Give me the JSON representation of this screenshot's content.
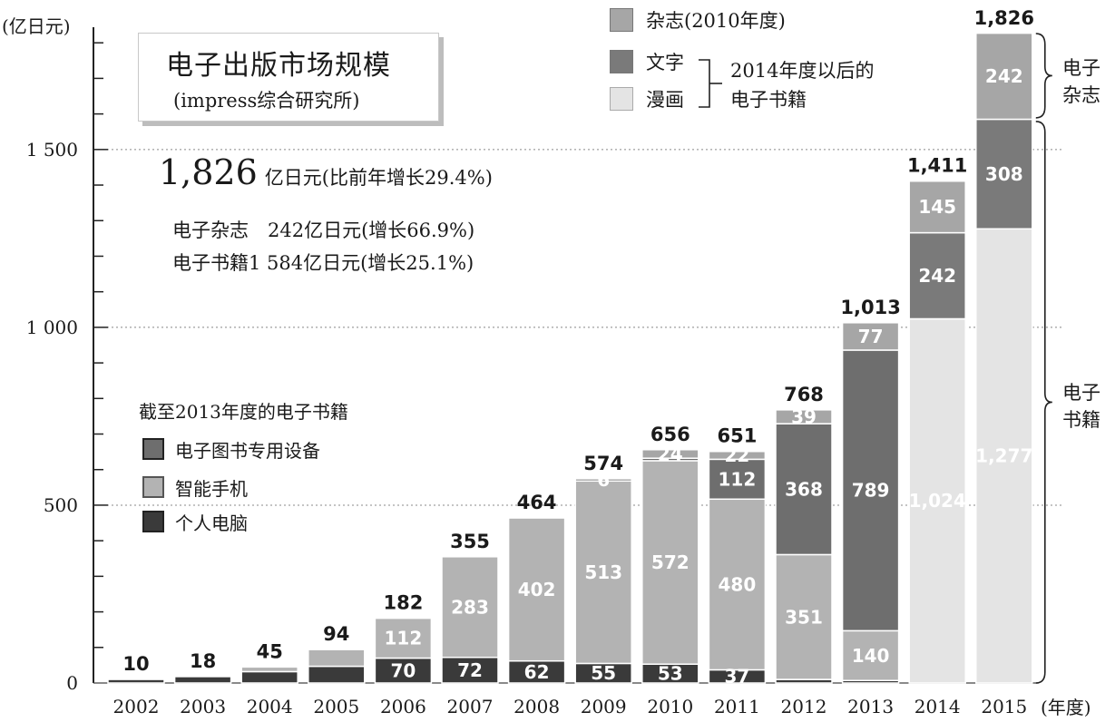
{
  "chart_data": {
    "type": "bar",
    "stacked": true,
    "categories": [
      "2002",
      "2003",
      "2004",
      "2005",
      "2006",
      "2007",
      "2008",
      "2009",
      "2010",
      "2011",
      "2012",
      "2013",
      "2014",
      "2015"
    ],
    "xlabel_unit": "(年度)",
    "ylabel": "(亿日元)",
    "ylim": [
      0,
      1826
    ],
    "yticks": [
      0,
      500,
      1000,
      1500
    ],
    "ytick_labels": [
      "0",
      "500",
      "1 000",
      "1 500"
    ],
    "grid": "dashed horizontal at 500, 1000, 1500",
    "totals": [
      "10",
      "18",
      "45",
      "94",
      "182",
      "355",
      "464",
      "574",
      "656",
      "651",
      "768",
      "1,013",
      "1,411",
      "1,826"
    ],
    "total_values": [
      10,
      18,
      45,
      94,
      182,
      355,
      464,
      574,
      656,
      651,
      768,
      1013,
      1411,
      1826
    ],
    "series": [
      {
        "name": "个人电脑",
        "color": "#3a3a3a",
        "values": [
          10,
          18,
          32,
          47,
          70,
          72,
          62,
          55,
          53,
          37,
          10,
          7,
          0,
          0
        ],
        "labels": [
          "",
          "",
          "",
          "",
          "70",
          "72",
          "62",
          "55",
          "53",
          "37",
          "",
          "",
          "",
          ""
        ]
      },
      {
        "name": "智能手机",
        "color": "#b3b3b3",
        "values": [
          0,
          0,
          13,
          47,
          112,
          283,
          402,
          513,
          572,
          480,
          351,
          140,
          0,
          0
        ],
        "labels": [
          "",
          "",
          "",
          "",
          "112",
          "283",
          "402",
          "513",
          "572",
          "480",
          "351",
          "140",
          "",
          ""
        ]
      },
      {
        "name": "电子图书专用设备",
        "color": "#6e6e6e",
        "values": [
          0,
          0,
          0,
          0,
          0,
          0,
          0,
          6,
          7,
          112,
          368,
          789,
          0,
          0
        ],
        "labels": [
          "",
          "",
          "",
          "",
          "",
          "",
          "",
          "6",
          "",
          "112",
          "368",
          "789",
          "",
          ""
        ]
      },
      {
        "name": "漫画",
        "color": "#e4e4e4",
        "values": [
          0,
          0,
          0,
          0,
          0,
          0,
          0,
          0,
          0,
          0,
          0,
          0,
          1024,
          1277
        ],
        "labels": [
          "",
          "",
          "",
          "",
          "",
          "",
          "",
          "",
          "",
          "",
          "",
          "",
          "1,024",
          "1,277"
        ]
      },
      {
        "name": "文字",
        "color": "#7a7a7a",
        "values": [
          0,
          0,
          0,
          0,
          0,
          0,
          0,
          0,
          0,
          0,
          0,
          0,
          242,
          308
        ],
        "labels": [
          "",
          "",
          "",
          "",
          "",
          "",
          "",
          "",
          "",
          "",
          "",
          "",
          "242",
          "308"
        ]
      },
      {
        "name": "杂志",
        "color": "#a6a6a6",
        "values": [
          0,
          0,
          0,
          0,
          0,
          0,
          0,
          0,
          24,
          22,
          39,
          77,
          145,
          242
        ],
        "labels": [
          "",
          "",
          "",
          "",
          "",
          "",
          "",
          "",
          "24",
          "22",
          "39",
          "77",
          "145",
          "242"
        ]
      }
    ]
  },
  "title": {
    "main": "电子出版市场规模",
    "sub": "(impress综合研究所)"
  },
  "summary": {
    "total_value": "1,826",
    "total_text": "亿日元(比前年增长29.4%)",
    "magazine_line": "电子杂志　242亿日元(增长66.9%)",
    "ebook_line": "电子书籍1 584亿日元(增长25.1%)"
  },
  "legend_bottom": {
    "title": "截至2013年度的电子书籍",
    "items": [
      {
        "label": "电子图书专用设备",
        "color": "#6e6e6e"
      },
      {
        "label": "智能手机",
        "color": "#b3b3b3"
      },
      {
        "label": "个人电脑",
        "color": "#3a3a3a"
      }
    ]
  },
  "legend_top": {
    "magazine": "杂志(2010年度)",
    "text": "文字",
    "manga": "漫画",
    "brace_line1": "2014年度以后的",
    "brace_line2": "电子书籍"
  },
  "side_labels": {
    "magazine": "电子杂志",
    "ebook": "电子书籍"
  }
}
